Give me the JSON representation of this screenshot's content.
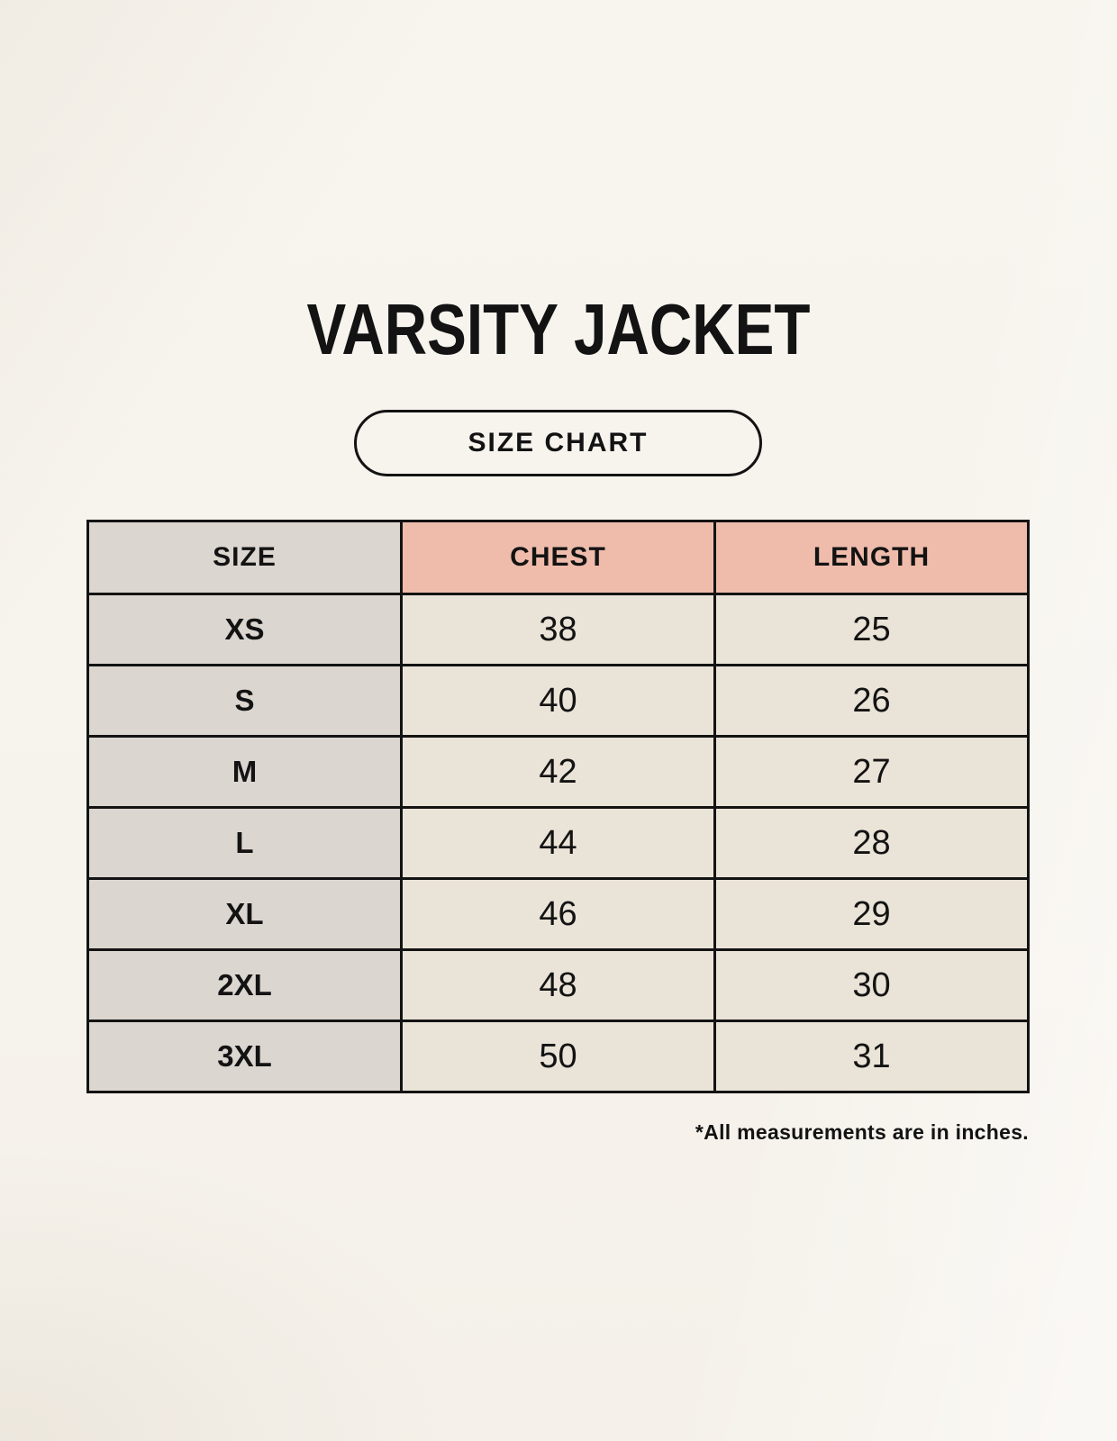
{
  "page": {
    "title": "VARSITY JACKET",
    "size_chart_label": "SIZE CHART",
    "footnote": "*All measurements are in inches."
  },
  "chart_data": {
    "type": "table",
    "title": "VARSITY JACKET",
    "subtitle": "SIZE CHART",
    "columns": [
      "SIZE",
      "CHEST",
      "LENGTH"
    ],
    "rows": [
      [
        "XS",
        "38",
        "25"
      ],
      [
        "S",
        "40",
        "26"
      ],
      [
        "M",
        "42",
        "27"
      ],
      [
        "L",
        "44",
        "28"
      ],
      [
        "XL",
        "46",
        "29"
      ],
      [
        "2XL",
        "48",
        "30"
      ],
      [
        "3XL",
        "50",
        "31"
      ]
    ],
    "units_note": "*All measurements are in inches.",
    "layout": {
      "header_accent_columns": [
        "CHEST",
        "LENGTH"
      ],
      "grid": "on"
    }
  },
  "colors": {
    "background": "#F7F4ED",
    "size_column": "#DCD6D0",
    "header_accent": "#EFBCAC",
    "data_cell": "#EAE3D7",
    "border": "#131313",
    "text": "#131313"
  }
}
